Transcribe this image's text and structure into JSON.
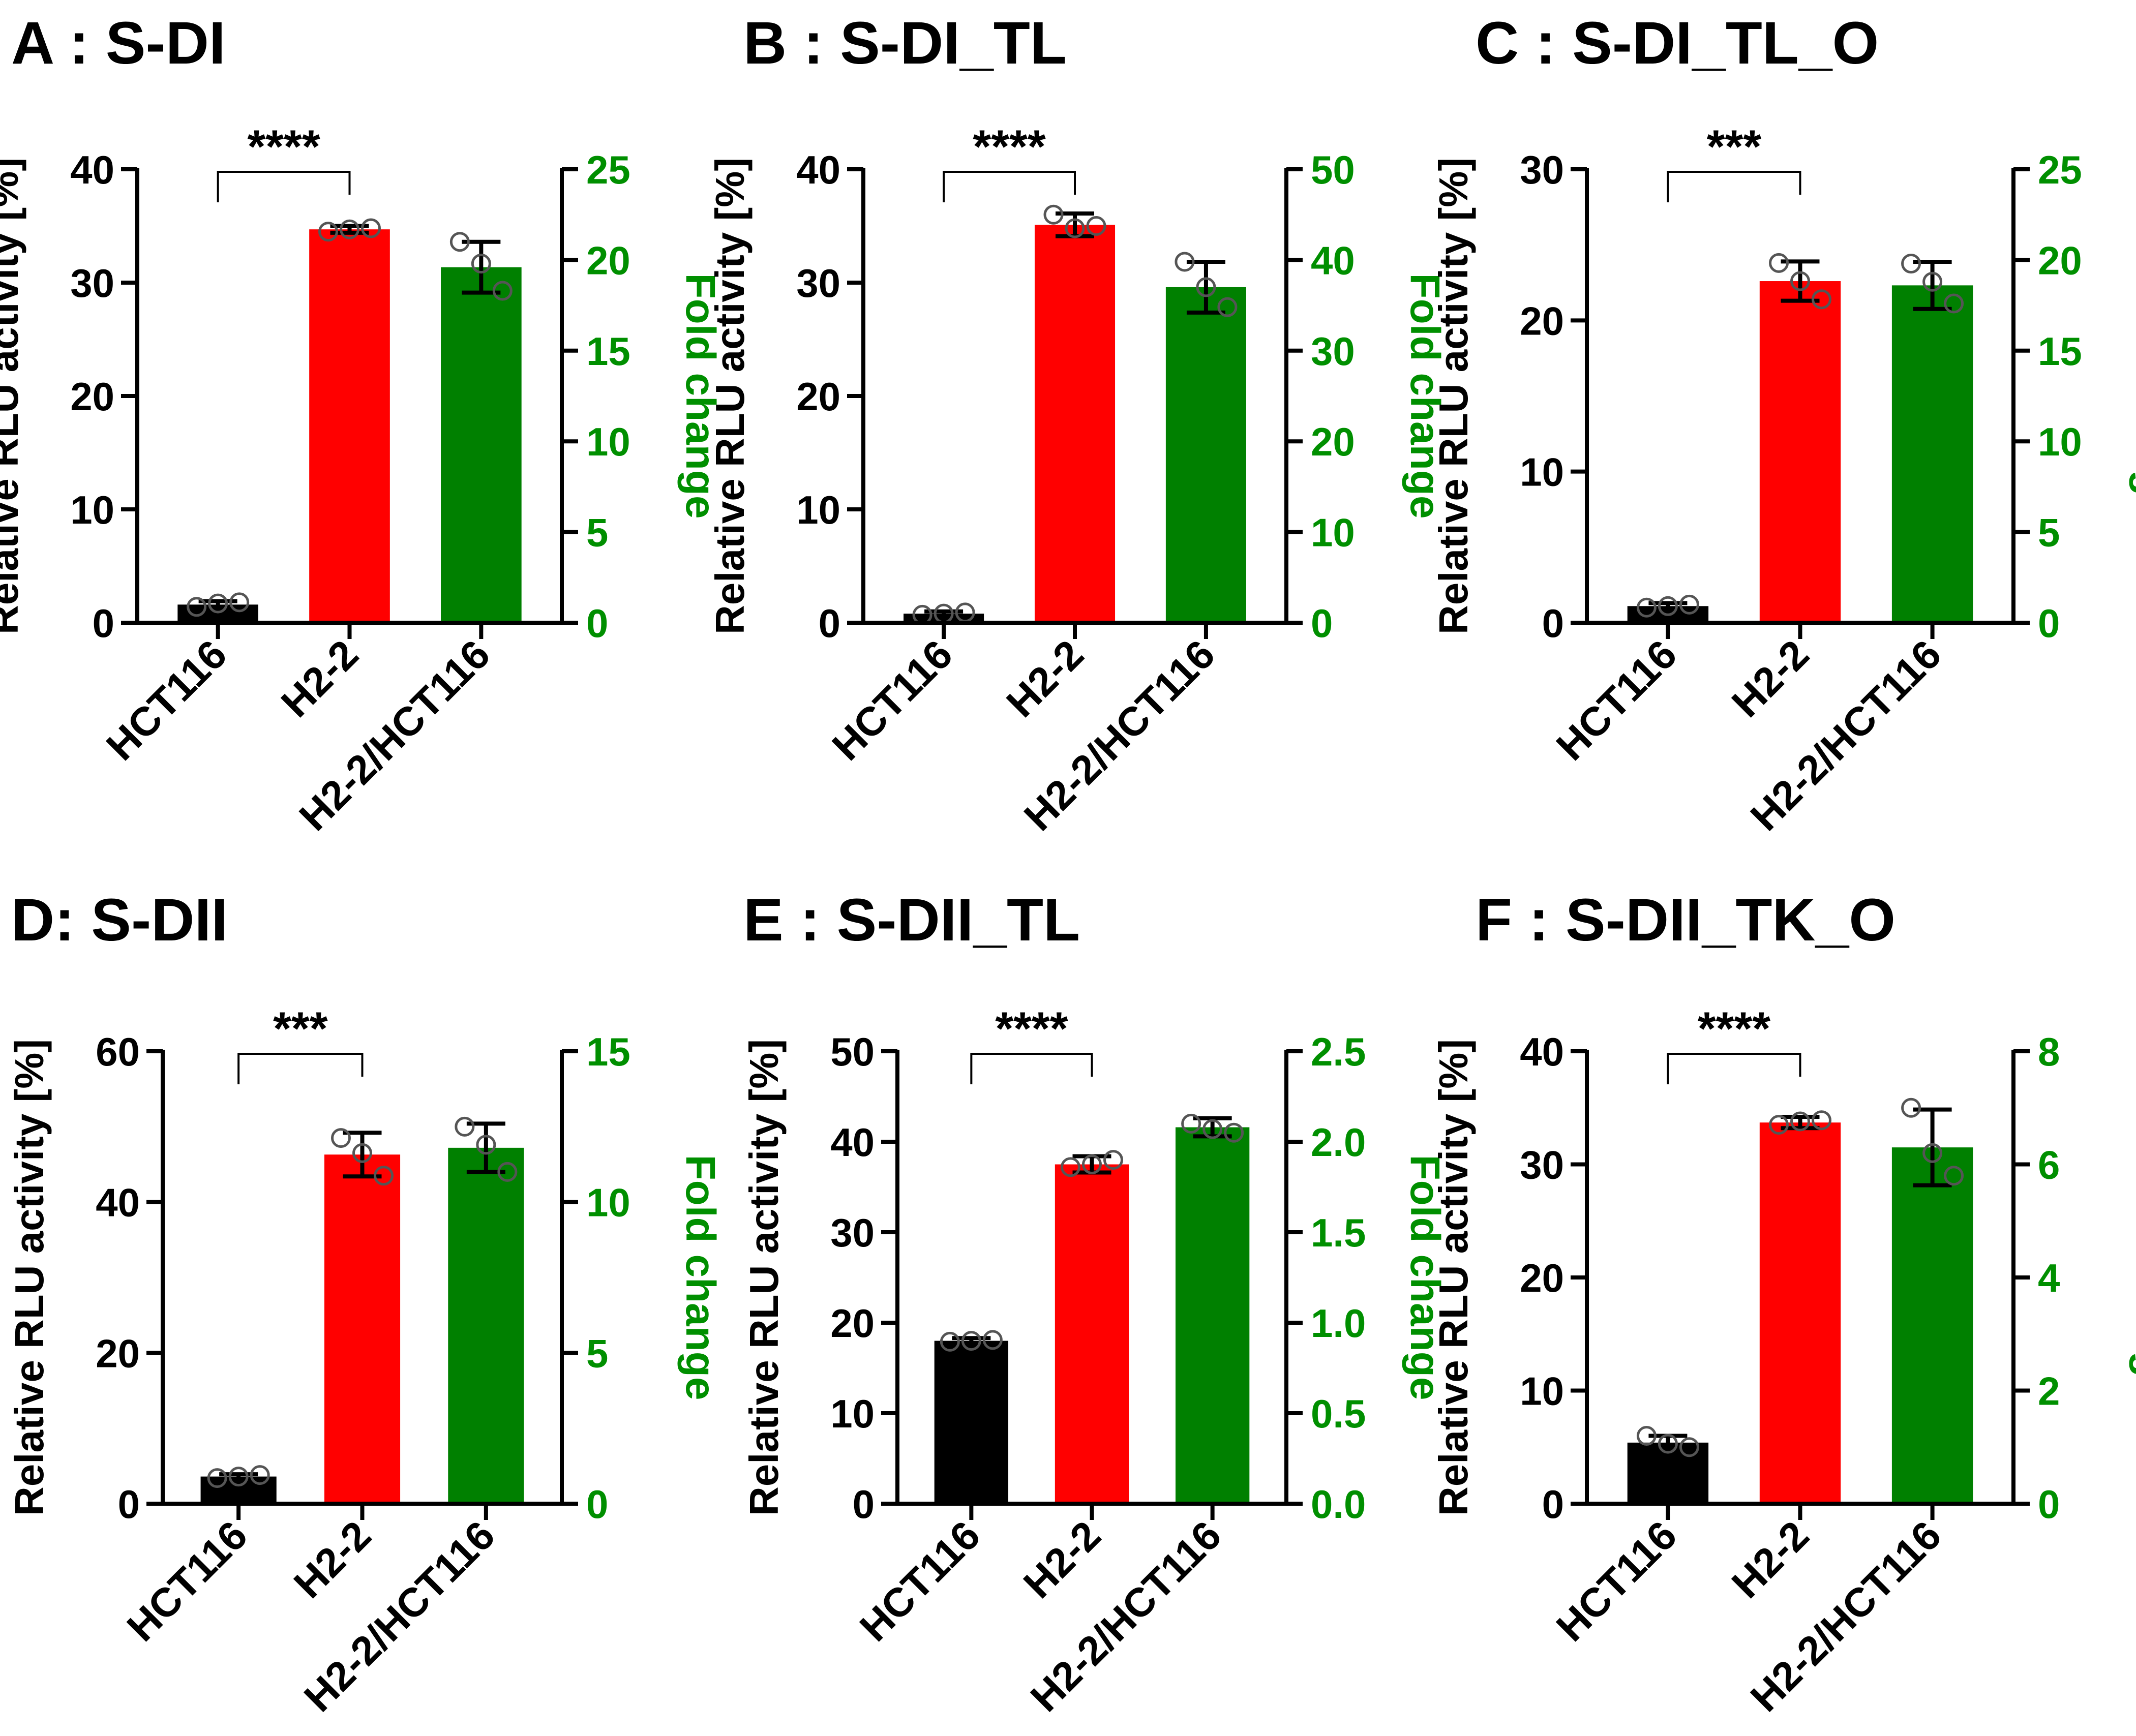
{
  "figure": {
    "description_text": "Six panels of dual-axis bar charts: Relative RLU activity and Fold change"
  },
  "chart_data": [
    {
      "type": "bar",
      "panel": "A",
      "title": "A : S-DI",
      "categories": [
        "HCT116",
        "H2-2",
        "H2-2/HCT116"
      ],
      "ylabel": "Relative RLU activity [%]",
      "y2label": "Fold change",
      "ylim": [
        0,
        40
      ],
      "yticks": [
        0,
        10,
        20,
        30,
        40
      ],
      "y2lim": [
        0,
        25
      ],
      "y2ticks": [
        "0",
        "5",
        "10",
        "15",
        "20",
        "25"
      ],
      "series": [
        {
          "name": "HCT116",
          "axis": "left",
          "color": "#000000",
          "value": 1.6,
          "err": 0.3,
          "points": [
            1.4,
            1.7,
            1.8
          ]
        },
        {
          "name": "H2-2",
          "axis": "left",
          "color": "#ff0000",
          "value": 34.7,
          "err": 0.3,
          "points": [
            34.5,
            34.7,
            34.8
          ]
        },
        {
          "name": "H2-2/HCT116",
          "axis": "right",
          "color": "#008000",
          "value": 19.6,
          "err": 1.4,
          "points": [
            21.0,
            19.8,
            18.3
          ]
        }
      ],
      "significance": {
        "label": "****",
        "from": 0,
        "to": 1
      }
    },
    {
      "type": "bar",
      "panel": "B",
      "title": "B : S-DI_TL",
      "categories": [
        "HCT116",
        "H2-2",
        "H2-2/HCT116"
      ],
      "ylabel": "Relative RLU activity [%]",
      "y2label": "Fold change",
      "ylim": [
        0,
        40
      ],
      "yticks": [
        0,
        10,
        20,
        30,
        40
      ],
      "y2lim": [
        0,
        50
      ],
      "y2ticks": [
        "0",
        "10",
        "20",
        "30",
        "40",
        "50"
      ],
      "series": [
        {
          "name": "HCT116",
          "axis": "left",
          "color": "#000000",
          "value": 0.8,
          "err": 0.2,
          "points": [
            0.7,
            0.8,
            0.9
          ]
        },
        {
          "name": "H2-2",
          "axis": "left",
          "color": "#ff0000",
          "value": 35.1,
          "err": 1.0,
          "points": [
            36.0,
            34.8,
            35.0
          ]
        },
        {
          "name": "H2-2/HCT116",
          "axis": "right",
          "color": "#008000",
          "value": 37.0,
          "err": 2.8,
          "points": [
            39.8,
            37.0,
            34.8
          ]
        }
      ],
      "significance": {
        "label": "****",
        "from": 0,
        "to": 1
      }
    },
    {
      "type": "bar",
      "panel": "C",
      "title": "C : S-DI_TL_O",
      "categories": [
        "HCT116",
        "H2-2",
        "H2-2/HCT116"
      ],
      "ylabel": "Relative RLU activity [%]",
      "y2label": "Fold change",
      "ylim": [
        0,
        30
      ],
      "yticks": [
        0,
        10,
        20,
        30
      ],
      "y2lim": [
        0,
        25
      ],
      "y2ticks": [
        "0",
        "5",
        "10",
        "15",
        "20",
        "25"
      ],
      "series": [
        {
          "name": "HCT116",
          "axis": "left",
          "color": "#000000",
          "value": 1.1,
          "err": 0.2,
          "points": [
            1.0,
            1.1,
            1.2
          ]
        },
        {
          "name": "H2-2",
          "axis": "left",
          "color": "#ff0000",
          "value": 22.6,
          "err": 1.3,
          "points": [
            23.8,
            22.6,
            21.4
          ]
        },
        {
          "name": "H2-2/HCT116",
          "axis": "right",
          "color": "#008000",
          "value": 18.6,
          "err": 1.3,
          "points": [
            19.8,
            18.8,
            17.6
          ]
        }
      ],
      "significance": {
        "label": "***",
        "from": 0,
        "to": 1
      }
    },
    {
      "type": "bar",
      "panel": "D",
      "title": "D: S-DII",
      "categories": [
        "HCT116",
        "H2-2",
        "H2-2/HCT116"
      ],
      "ylabel": "Relative RLU activity [%]",
      "y2label": "Fold change",
      "ylim": [
        0,
        60
      ],
      "yticks": [
        0,
        20,
        40,
        60
      ],
      "y2lim": [
        0,
        15
      ],
      "y2ticks": [
        "0",
        "5",
        "10",
        "15"
      ],
      "series": [
        {
          "name": "HCT116",
          "axis": "left",
          "color": "#000000",
          "value": 3.6,
          "err": 0.3,
          "points": [
            3.4,
            3.6,
            3.8
          ]
        },
        {
          "name": "H2-2",
          "axis": "left",
          "color": "#ff0000",
          "value": 46.3,
          "err": 2.9,
          "points": [
            48.5,
            46.5,
            43.5
          ]
        },
        {
          "name": "H2-2/HCT116",
          "axis": "right",
          "color": "#008000",
          "value": 11.8,
          "err": 0.8,
          "points": [
            12.5,
            11.9,
            11.0
          ]
        }
      ],
      "significance": {
        "label": "***",
        "from": 0,
        "to": 1
      }
    },
    {
      "type": "bar",
      "panel": "E",
      "title": "E : S-DII_TL",
      "categories": [
        "HCT116",
        "H2-2",
        "H2-2/HCT116"
      ],
      "ylabel": "Relative RLU activity [%]",
      "y2label": "Fold change",
      "ylim": [
        0,
        50
      ],
      "yticks": [
        0,
        10,
        20,
        30,
        40,
        50
      ],
      "y2lim": [
        0,
        2.5
      ],
      "y2ticks": [
        "0.0",
        "0.5",
        "1.0",
        "1.5",
        "2.0",
        "2.5"
      ],
      "series": [
        {
          "name": "HCT116",
          "axis": "left",
          "color": "#000000",
          "value": 18.0,
          "err": 0.3,
          "points": [
            17.9,
            18.0,
            18.1
          ]
        },
        {
          "name": "H2-2",
          "axis": "left",
          "color": "#ff0000",
          "value": 37.5,
          "err": 0.9,
          "points": [
            37.2,
            37.5,
            38.0
          ]
        },
        {
          "name": "H2-2/HCT116",
          "axis": "right",
          "color": "#008000",
          "value": 2.08,
          "err": 0.05,
          "points": [
            2.1,
            2.07,
            2.05
          ]
        }
      ],
      "significance": {
        "label": "****",
        "from": 0,
        "to": 1
      }
    },
    {
      "type": "bar",
      "panel": "F",
      "title": "F : S-DII_TK_O",
      "categories": [
        "HCT116",
        "H2-2",
        "H2-2/HCT116"
      ],
      "ylabel": "Relative RLU activity [%]",
      "y2label": "Fold change",
      "ylim": [
        0,
        40
      ],
      "yticks": [
        0,
        10,
        20,
        30,
        40
      ],
      "y2lim": [
        0,
        8
      ],
      "y2ticks": [
        "0",
        "2",
        "4",
        "6",
        "8"
      ],
      "series": [
        {
          "name": "HCT116",
          "axis": "left",
          "color": "#000000",
          "value": 5.4,
          "err": 0.6,
          "points": [
            6.0,
            5.3,
            5.0
          ]
        },
        {
          "name": "H2-2",
          "axis": "left",
          "color": "#ff0000",
          "value": 33.7,
          "err": 0.5,
          "points": [
            33.5,
            33.8,
            33.9
          ]
        },
        {
          "name": "H2-2/HCT116",
          "axis": "right",
          "color": "#008000",
          "value": 6.3,
          "err": 0.67,
          "points": [
            7.0,
            6.2,
            5.8
          ]
        }
      ],
      "significance": {
        "label": "****",
        "from": 0,
        "to": 1
      }
    }
  ]
}
